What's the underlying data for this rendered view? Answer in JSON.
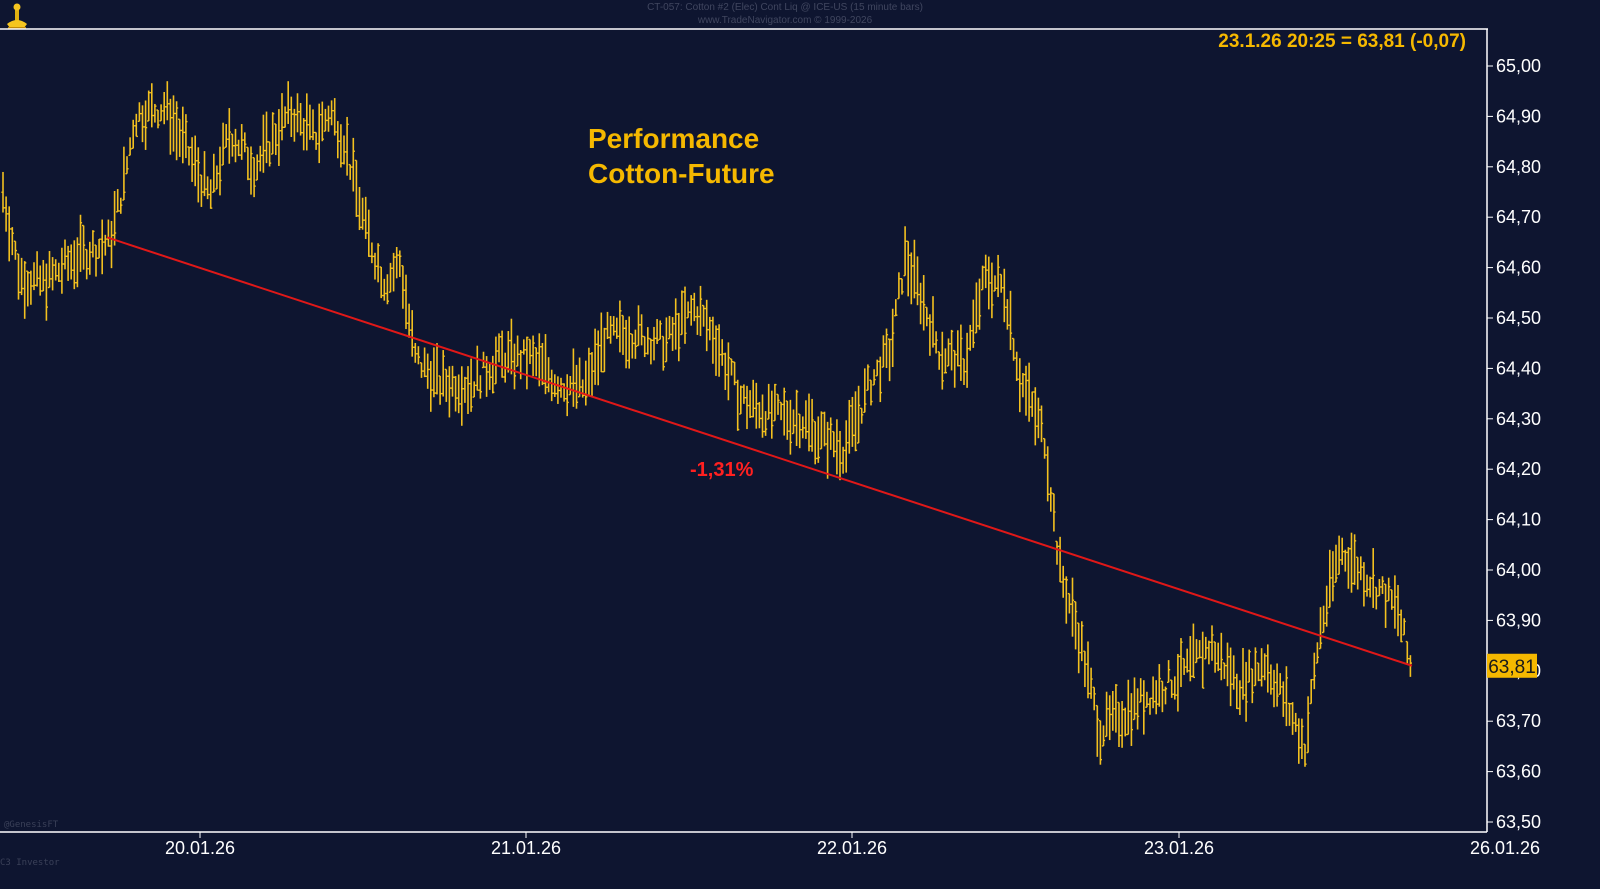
{
  "header": {
    "line1": "CT-057: Cotton #2 (Elec) Cont Liq @ ICE-US (15 minute bars)",
    "line2": "www.TradeNavigator.com © 1999-2026"
  },
  "footer": {
    "watermark": "@GenesisFT",
    "credit": "C3 Investor"
  },
  "colors": {
    "background": "#0e1530",
    "bars": "#f2c01f",
    "trendline": "#e01818",
    "axis": "#ffffff",
    "info": "#f5b800",
    "price_tag_bg": "#f5b800"
  },
  "chart_data": {
    "type": "ohlc-bar",
    "title": "Performance\nCotton-Future",
    "instrument": "Cotton #2 (Elec) Cont Liq",
    "bar_interval": "15 minute bars",
    "info_text": "23.1.26 20:25 = 63,81 (-0,07)",
    "last_price": 63.81,
    "last_price_label": "63,81",
    "ylim": [
      63.5,
      65.05
    ],
    "y_ticks": [
      "63,50",
      "63,60",
      "63,70",
      "63,80",
      "63,90",
      "64,00",
      "64,10",
      "64,20",
      "64,30",
      "64,40",
      "64,50",
      "64,60",
      "64,70",
      "64,80",
      "64,90",
      "65,00"
    ],
    "x_ticks": [
      "20.01.26",
      "21.01.26",
      "22.01.26",
      "23.01.26",
      "26.01.26"
    ],
    "trendline": {
      "start": {
        "x": "20.01.26 (early)",
        "y": 64.66
      },
      "end": {
        "x": "23.01.26 20:25",
        "y": 63.81
      },
      "label": "-1,31%",
      "change_pct": -1.31
    },
    "price_path_anchors": [
      [
        0,
        64.78
      ],
      [
        20,
        64.58
      ],
      [
        45,
        64.57
      ],
      [
        75,
        64.62
      ],
      [
        110,
        64.65
      ],
      [
        125,
        64.78
      ],
      [
        135,
        64.9
      ],
      [
        165,
        64.92
      ],
      [
        190,
        64.82
      ],
      [
        210,
        64.74
      ],
      [
        230,
        64.87
      ],
      [
        255,
        64.8
      ],
      [
        290,
        64.91
      ],
      [
        315,
        64.86
      ],
      [
        330,
        64.91
      ],
      [
        345,
        64.85
      ],
      [
        365,
        64.68
      ],
      [
        385,
        64.57
      ],
      [
        400,
        64.61
      ],
      [
        415,
        64.42
      ],
      [
        440,
        64.37
      ],
      [
        470,
        64.37
      ],
      [
        500,
        64.42
      ],
      [
        530,
        64.42
      ],
      [
        560,
        64.37
      ],
      [
        585,
        64.36
      ],
      [
        605,
        64.46
      ],
      [
        630,
        64.47
      ],
      [
        665,
        64.45
      ],
      [
        695,
        64.52
      ],
      [
        715,
        64.46
      ],
      [
        740,
        64.34
      ],
      [
        770,
        64.31
      ],
      [
        800,
        64.3
      ],
      [
        825,
        64.26
      ],
      [
        845,
        64.24
      ],
      [
        870,
        64.37
      ],
      [
        890,
        64.43
      ],
      [
        905,
        64.62
      ],
      [
        920,
        64.55
      ],
      [
        940,
        64.43
      ],
      [
        965,
        64.41
      ],
      [
        985,
        64.58
      ],
      [
        1005,
        64.56
      ],
      [
        1020,
        64.38
      ],
      [
        1045,
        64.26
      ],
      [
        1060,
        64.0
      ],
      [
        1080,
        63.86
      ],
      [
        1100,
        63.68
      ],
      [
        1140,
        63.74
      ],
      [
        1180,
        63.79
      ],
      [
        1210,
        63.85
      ],
      [
        1240,
        63.77
      ],
      [
        1265,
        63.82
      ],
      [
        1285,
        63.74
      ],
      [
        1305,
        63.65
      ],
      [
        1320,
        63.88
      ],
      [
        1340,
        64.04
      ],
      [
        1360,
        64.0
      ],
      [
        1380,
        63.96
      ],
      [
        1398,
        63.92
      ],
      [
        1410,
        63.81
      ]
    ]
  }
}
